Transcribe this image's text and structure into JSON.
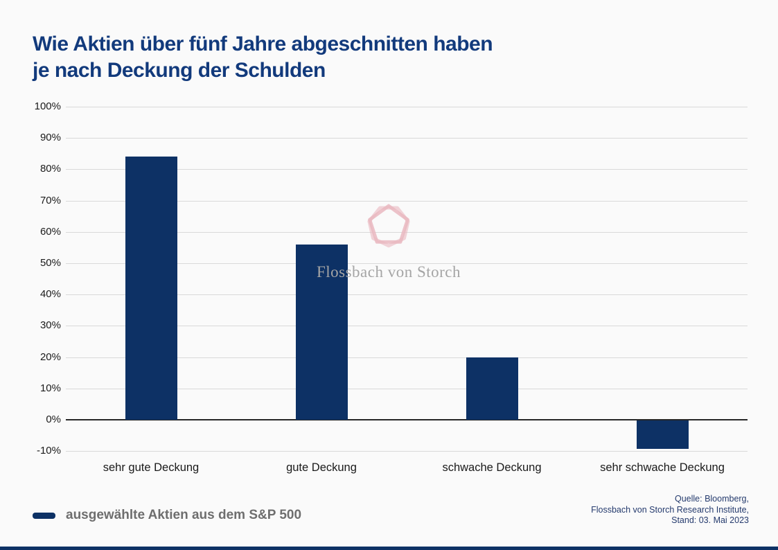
{
  "title": {
    "line1": "Wie Aktien über fünf Jahre abgeschnitten haben",
    "line2": "je nach Deckung der Schulden"
  },
  "chart_data": {
    "type": "bar",
    "title": "Wie Aktien über fünf Jahre abgeschnitten haben je nach Deckung der Schulden",
    "categories": [
      "sehr gute Deckung",
      "gute Deckung",
      "schwache Deckung",
      "sehr schwache Deckung"
    ],
    "values": [
      84,
      56,
      20,
      -9
    ],
    "series_name": "ausgewählte Aktien aus dem S&P 500",
    "xlabel": "",
    "ylabel": "",
    "ylim": [
      -10,
      100
    ],
    "ytick_step": 10,
    "ytick_suffix": "%",
    "grid": true,
    "legend_position": "bottom-left"
  },
  "legend": {
    "label": "ausgewählte Aktien aus dem S&P 500"
  },
  "watermark": {
    "text": "Flossbach von Storch"
  },
  "source": {
    "line1": "Quelle: Bloomberg,",
    "line2": "Flossbach von Storch Research Institute,",
    "line3": "Stand: 03. Mai 2023"
  },
  "colors": {
    "bar": "#0d3165",
    "title_text": "#123a7c",
    "gridline": "#d9d9d9",
    "zero_line": "#262626",
    "tick_text": "#1a1a1a",
    "legend_text": "#6e6e6e",
    "source_text": "#243a6d",
    "watermark_pink": "#e9b7bf",
    "watermark_gray": "#a5a5a5",
    "background": "#fafafa",
    "footer_rule": "#0d3165"
  }
}
